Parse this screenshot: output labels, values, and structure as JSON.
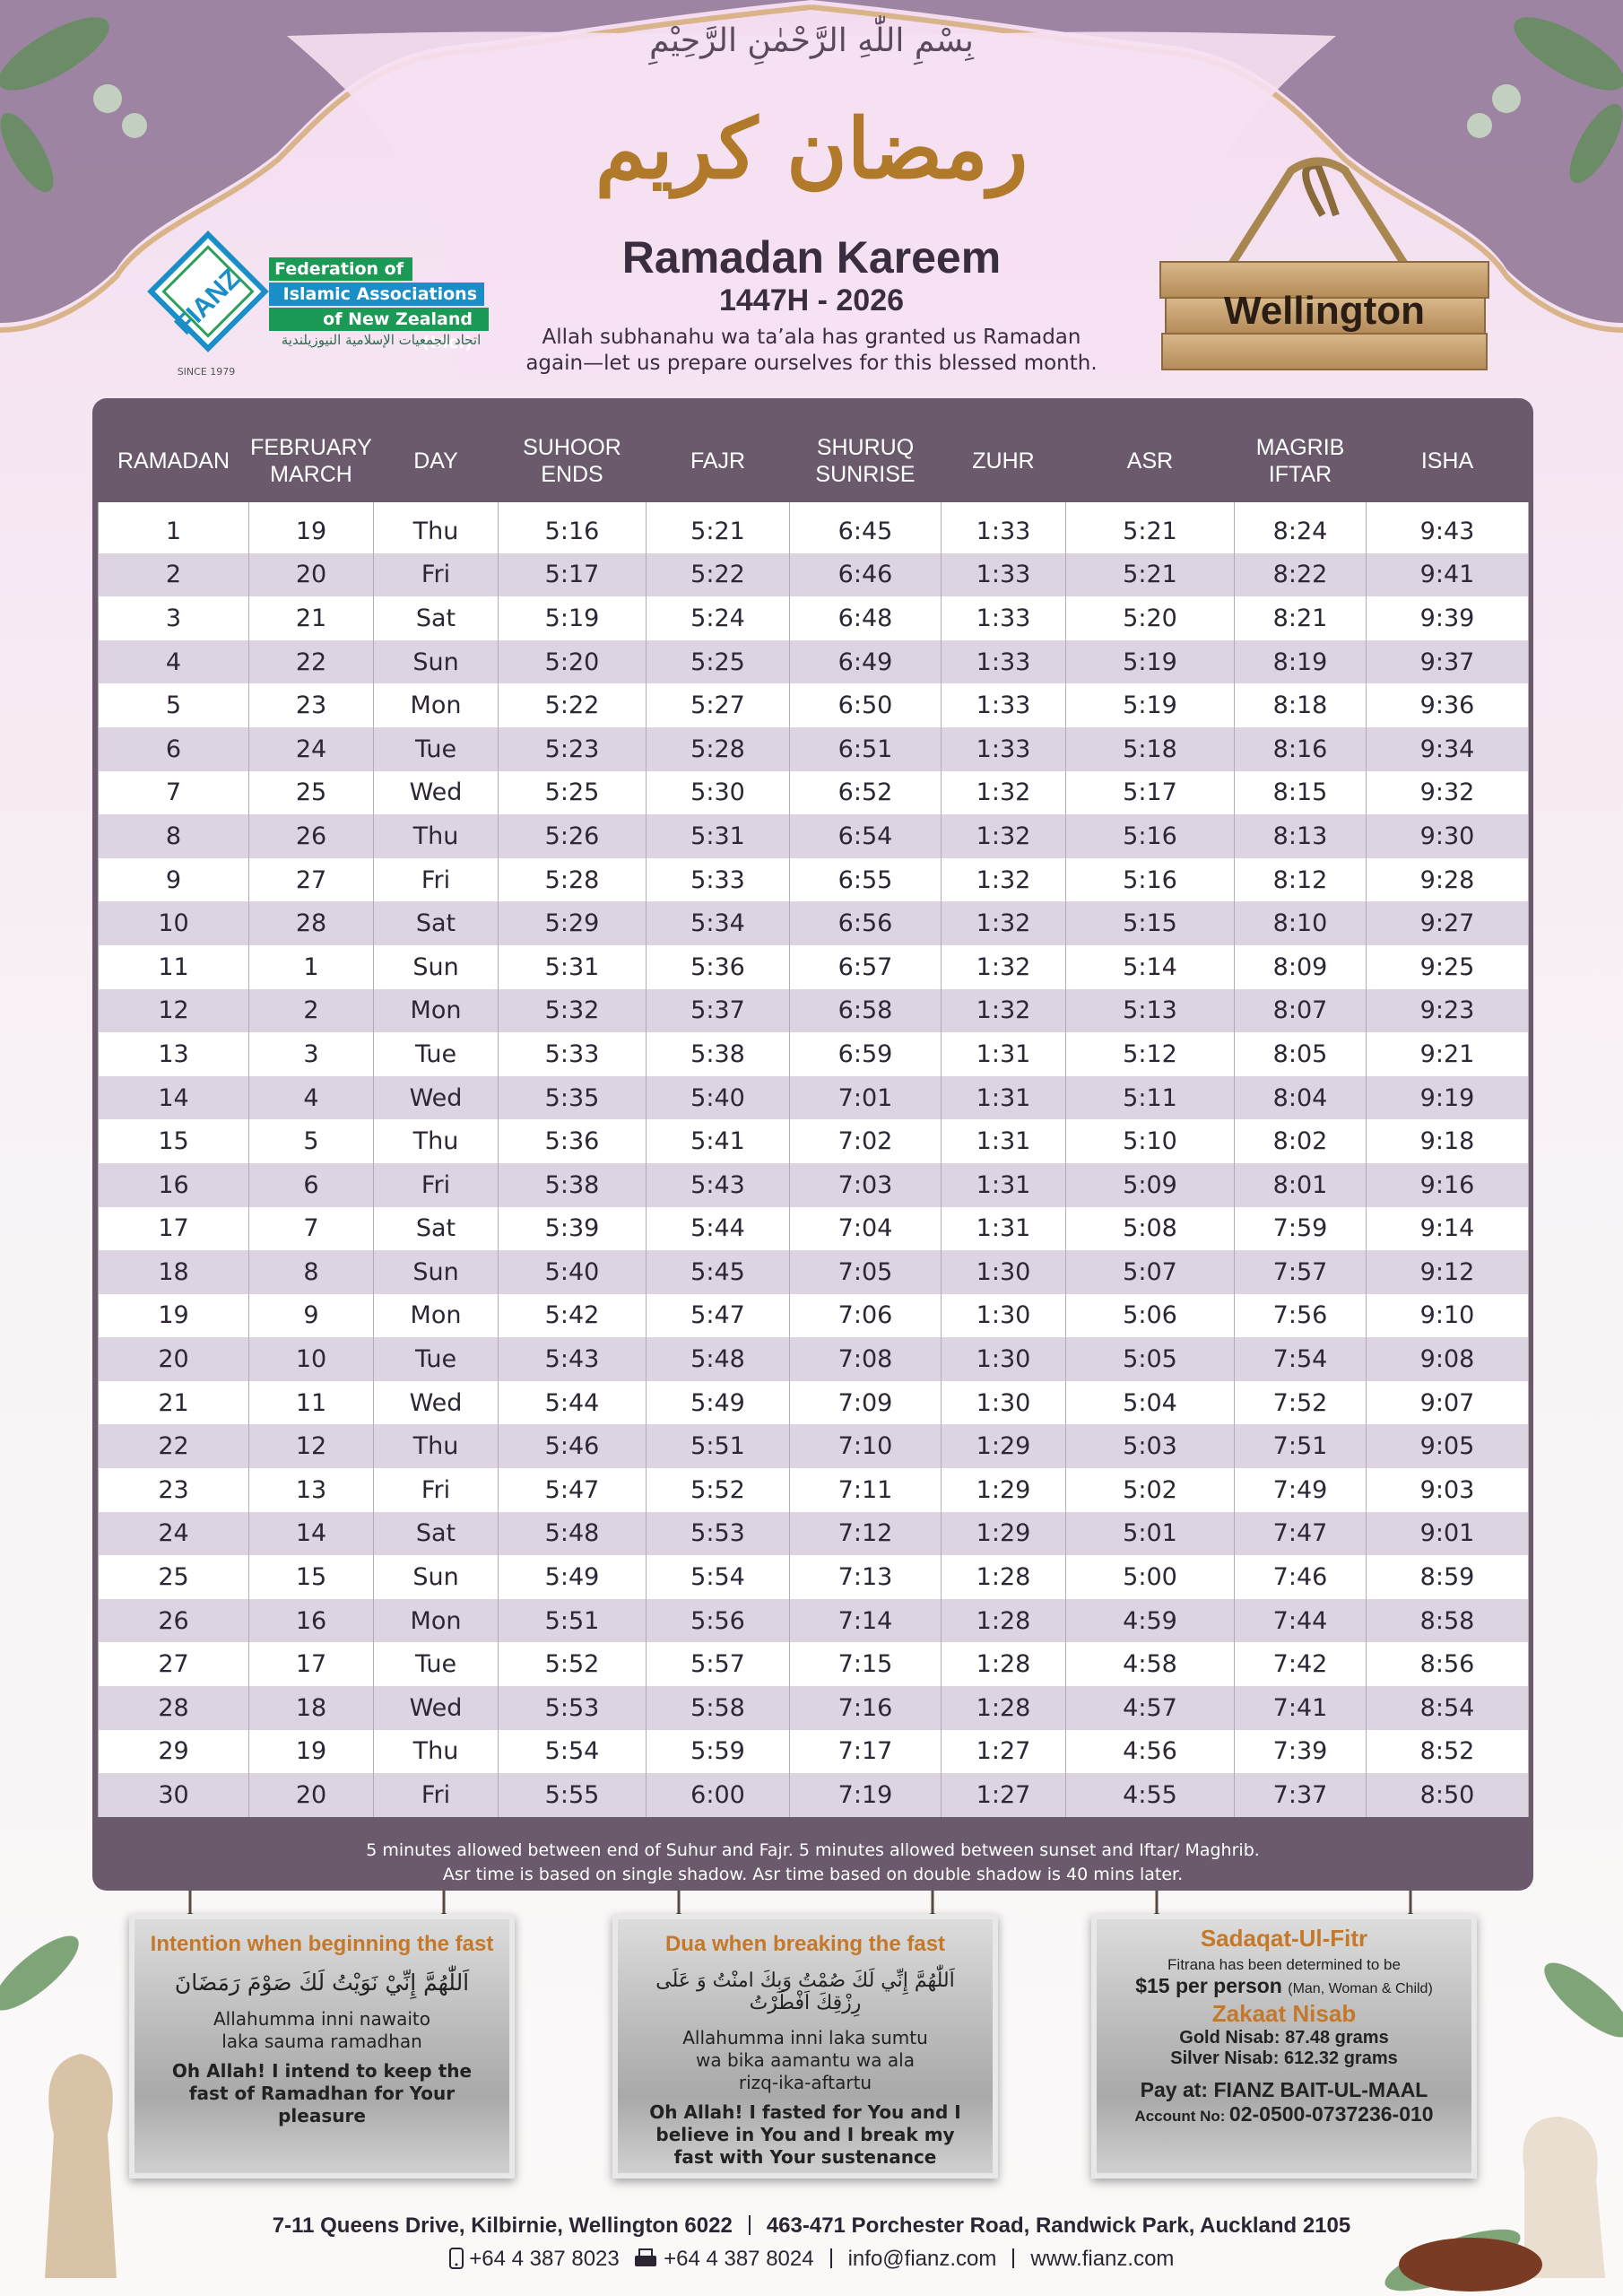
{
  "header": {
    "bismillah": "بِسْمِ اللّٰهِ الرَّحْمٰنِ الرَّحِيْمِ",
    "calligraphy": "رمضان كريم",
    "title": "Ramadan Kareem",
    "subtitle": "1447H - 2026",
    "tagline": [
      "Allah subhanahu wa ta’ala has granted us Ramadan",
      "again—let us prepare ourselves for this blessed month."
    ],
    "city": "Wellington"
  },
  "logo": {
    "mark": "FIANZ",
    "lines": [
      "Federation of",
      "Islamic Associations",
      "of New Zealand (Inc.)"
    ],
    "arabic": "اتحاد الجمعيات الإسلامية النيوزيلندية",
    "since": "SINCE 1979"
  },
  "table": {
    "headers": [
      [
        "RAMADAN"
      ],
      [
        "FEBRUARY",
        "MARCH"
      ],
      [
        "DAY"
      ],
      [
        "SUHOOR",
        "ENDS"
      ],
      [
        "FAJR"
      ],
      [
        "SHURUQ",
        "SUNRISE"
      ],
      [
        "ZUHR"
      ],
      [
        "ASR"
      ],
      [
        "MAGRIB",
        "IFTAR"
      ],
      [
        "ISHA"
      ]
    ],
    "rows": [
      [
        1,
        19,
        "Thu",
        "5:16",
        "5:21",
        "6:45",
        "1:33",
        "5:21",
        "8:24",
        "9:43"
      ],
      [
        2,
        20,
        "Fri",
        "5:17",
        "5:22",
        "6:46",
        "1:33",
        "5:21",
        "8:22",
        "9:41"
      ],
      [
        3,
        21,
        "Sat",
        "5:19",
        "5:24",
        "6:48",
        "1:33",
        "5:20",
        "8:21",
        "9:39"
      ],
      [
        4,
        22,
        "Sun",
        "5:20",
        "5:25",
        "6:49",
        "1:33",
        "5:19",
        "8:19",
        "9:37"
      ],
      [
        5,
        23,
        "Mon",
        "5:22",
        "5:27",
        "6:50",
        "1:33",
        "5:19",
        "8:18",
        "9:36"
      ],
      [
        6,
        24,
        "Tue",
        "5:23",
        "5:28",
        "6:51",
        "1:33",
        "5:18",
        "8:16",
        "9:34"
      ],
      [
        7,
        25,
        "Wed",
        "5:25",
        "5:30",
        "6:52",
        "1:32",
        "5:17",
        "8:15",
        "9:32"
      ],
      [
        8,
        26,
        "Thu",
        "5:26",
        "5:31",
        "6:54",
        "1:32",
        "5:16",
        "8:13",
        "9:30"
      ],
      [
        9,
        27,
        "Fri",
        "5:28",
        "5:33",
        "6:55",
        "1:32",
        "5:16",
        "8:12",
        "9:28"
      ],
      [
        10,
        28,
        "Sat",
        "5:29",
        "5:34",
        "6:56",
        "1:32",
        "5:15",
        "8:10",
        "9:27"
      ],
      [
        11,
        1,
        "Sun",
        "5:31",
        "5:36",
        "6:57",
        "1:32",
        "5:14",
        "8:09",
        "9:25"
      ],
      [
        12,
        2,
        "Mon",
        "5:32",
        "5:37",
        "6:58",
        "1:32",
        "5:13",
        "8:07",
        "9:23"
      ],
      [
        13,
        3,
        "Tue",
        "5:33",
        "5:38",
        "6:59",
        "1:31",
        "5:12",
        "8:05",
        "9:21"
      ],
      [
        14,
        4,
        "Wed",
        "5:35",
        "5:40",
        "7:01",
        "1:31",
        "5:11",
        "8:04",
        "9:19"
      ],
      [
        15,
        5,
        "Thu",
        "5:36",
        "5:41",
        "7:02",
        "1:31",
        "5:10",
        "8:02",
        "9:18"
      ],
      [
        16,
        6,
        "Fri",
        "5:38",
        "5:43",
        "7:03",
        "1:31",
        "5:09",
        "8:01",
        "9:16"
      ],
      [
        17,
        7,
        "Sat",
        "5:39",
        "5:44",
        "7:04",
        "1:31",
        "5:08",
        "7:59",
        "9:14"
      ],
      [
        18,
        8,
        "Sun",
        "5:40",
        "5:45",
        "7:05",
        "1:30",
        "5:07",
        "7:57",
        "9:12"
      ],
      [
        19,
        9,
        "Mon",
        "5:42",
        "5:47",
        "7:06",
        "1:30",
        "5:06",
        "7:56",
        "9:10"
      ],
      [
        20,
        10,
        "Tue",
        "5:43",
        "5:48",
        "7:08",
        "1:30",
        "5:05",
        "7:54",
        "9:08"
      ],
      [
        21,
        11,
        "Wed",
        "5:44",
        "5:49",
        "7:09",
        "1:30",
        "5:04",
        "7:52",
        "9:07"
      ],
      [
        22,
        12,
        "Thu",
        "5:46",
        "5:51",
        "7:10",
        "1:29",
        "5:03",
        "7:51",
        "9:05"
      ],
      [
        23,
        13,
        "Fri",
        "5:47",
        "5:52",
        "7:11",
        "1:29",
        "5:02",
        "7:49",
        "9:03"
      ],
      [
        24,
        14,
        "Sat",
        "5:48",
        "5:53",
        "7:12",
        "1:29",
        "5:01",
        "7:47",
        "9:01"
      ],
      [
        25,
        15,
        "Sun",
        "5:49",
        "5:54",
        "7:13",
        "1:28",
        "5:00",
        "7:46",
        "8:59"
      ],
      [
        26,
        16,
        "Mon",
        "5:51",
        "5:56",
        "7:14",
        "1:28",
        "4:59",
        "7:44",
        "8:58"
      ],
      [
        27,
        17,
        "Tue",
        "5:52",
        "5:57",
        "7:15",
        "1:28",
        "4:58",
        "7:42",
        "8:56"
      ],
      [
        28,
        18,
        "Wed",
        "5:53",
        "5:58",
        "7:16",
        "1:28",
        "4:57",
        "7:41",
        "8:54"
      ],
      [
        29,
        19,
        "Thu",
        "5:54",
        "5:59",
        "7:17",
        "1:27",
        "4:56",
        "7:39",
        "8:52"
      ],
      [
        30,
        20,
        "Fri",
        "5:55",
        "6:00",
        "7:19",
        "1:27",
        "4:55",
        "7:37",
        "8:50"
      ]
    ],
    "notes": [
      "5 minutes allowed between end of Suhur and Fajr. 5 minutes allowed between sunset and Iftar/ Maghrib.",
      "Asr time is based on single shadow. Asr time based on double shadow is 40 mins later."
    ]
  },
  "cards": [
    {
      "title": "Intention when beginning the fast",
      "arabic": "اَللّٰهُمَّ إِنِّيْ نَوَيْتُ لَكَ صَوْمَ رَمَضَانَ",
      "transliteration": "Allahumma inni nawaito laka sauma ramadhan",
      "translation": "Oh Allah! I intend to keep the fast of Ramadhan for Your pleasure"
    },
    {
      "title": "Dua when breaking the fast",
      "arabic": "اَللّٰهُمَّ إِنِّي لَكَ صُمْتُ وَبِكَ امنْتُ وَ عَلَى رِزْقِكَ اَفْطَرْتُ",
      "transliteration": "Allahumma inni laka sumtu wa bika aamantu wa ala rizq-ika-aftartu",
      "translation": "Oh Allah! I fasted for You and I believe in You and I break my fast with Your sustenance"
    }
  ],
  "zakat": {
    "title": "Sadaqat-Ul-Fitr",
    "intro": "Fitrana has been determined to be",
    "amount": "$15 per person",
    "amount_note": "(Man, Woman & Child)",
    "nisab_title": "Zakaat Nisab",
    "gold": "Gold Nisab: 87.48 grams",
    "silver": "Silver Nisab: 612.32 grams",
    "pay": "Pay at: FIANZ BAIT-UL-MAAL",
    "account_label": "Account No:",
    "account": "02-0500-0737236-010"
  },
  "footer": {
    "addresses": [
      "7-11 Queens Drive, Kilbirnie, Wellington 6022",
      "463-471 Porchester Road, Randwick Park, Auckland 2105"
    ],
    "phone": "+64 4 387 8023",
    "fax": "+64 4 387 8024",
    "email": "info@fianz.com",
    "website": "www.fianz.com"
  }
}
